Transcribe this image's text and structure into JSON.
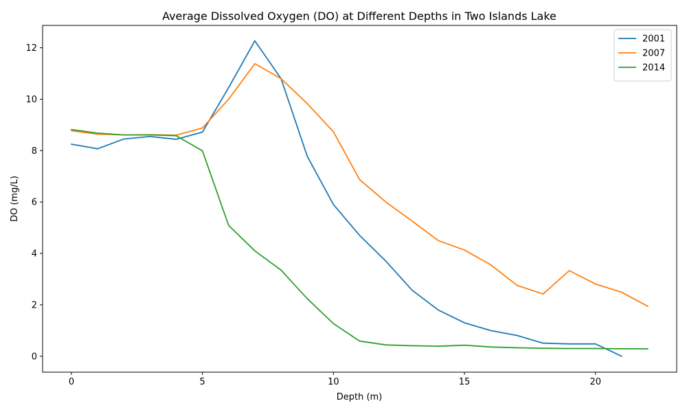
{
  "chart_data": {
    "type": "line",
    "title": "Average Dissolved Oxygen (DO) at Different Depths in Two Islands Lake",
    "xlabel": "Depth (m)",
    "ylabel": "DO (mg/L)",
    "xlim": [
      -1.1,
      23.1
    ],
    "ylim": [
      -0.62,
      12.87
    ],
    "xticks": [
      0,
      5,
      10,
      15,
      20
    ],
    "yticks": [
      0,
      2,
      4,
      6,
      8,
      10,
      12
    ],
    "grid": false,
    "legend_position": "top-right",
    "series": [
      {
        "name": "2001",
        "color": "#1f77b4",
        "x": [
          0,
          1,
          2,
          3,
          4,
          5,
          6,
          7,
          8,
          9,
          10,
          11,
          12,
          13,
          14,
          15,
          16,
          17,
          18,
          19,
          20,
          21
        ],
        "y": [
          8.25,
          8.07,
          8.45,
          8.55,
          8.44,
          8.72,
          10.45,
          12.27,
          10.8,
          7.78,
          5.9,
          4.7,
          3.7,
          2.57,
          1.8,
          1.3,
          1.0,
          0.81,
          0.51,
          0.48,
          0.48,
          0.0
        ]
      },
      {
        "name": "2007",
        "color": "#ff7f0e",
        "x": [
          0,
          1,
          2,
          3,
          4,
          5,
          6,
          7,
          8,
          9,
          10,
          11,
          12,
          13,
          14,
          15,
          16,
          17,
          18,
          19,
          20,
          21,
          22
        ],
        "y": [
          8.77,
          8.64,
          8.61,
          8.62,
          8.6,
          8.88,
          10.0,
          11.38,
          10.8,
          9.83,
          8.73,
          6.87,
          6.0,
          5.26,
          4.5,
          4.13,
          3.56,
          2.76,
          2.42,
          3.33,
          2.81,
          2.49,
          1.94
        ]
      },
      {
        "name": "2014",
        "color": "#2ca02c",
        "x": [
          0,
          1,
          2,
          3,
          4,
          5,
          6,
          7,
          8,
          9,
          10,
          11,
          12,
          13,
          14,
          15,
          16,
          17,
          18,
          19,
          20,
          21,
          22
        ],
        "y": [
          8.82,
          8.68,
          8.61,
          8.61,
          8.58,
          7.99,
          5.09,
          4.1,
          3.35,
          2.24,
          1.27,
          0.59,
          0.44,
          0.41,
          0.39,
          0.43,
          0.36,
          0.33,
          0.31,
          0.3,
          0.3,
          0.29,
          0.29
        ]
      }
    ]
  }
}
